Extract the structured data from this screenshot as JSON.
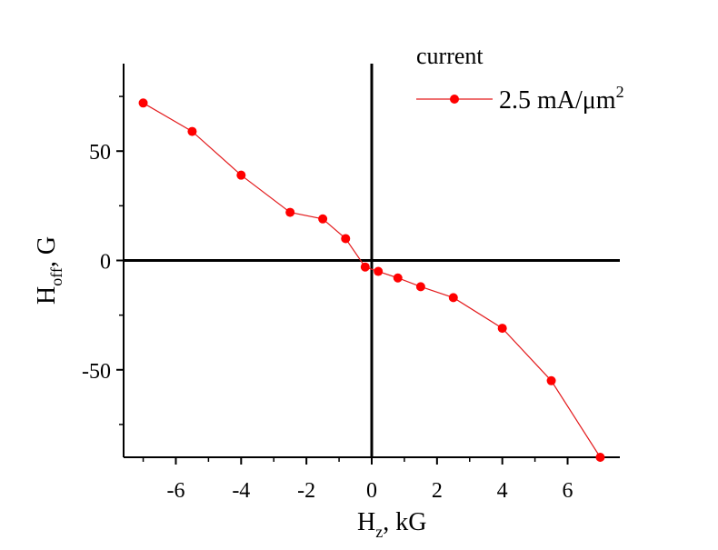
{
  "chart_data": {
    "type": "line",
    "x": [
      -7,
      -5.5,
      -4,
      -2.5,
      -1.5,
      -0.8,
      -0.2,
      0.2,
      0.8,
      1.5,
      2.5,
      4,
      5.5,
      7
    ],
    "series": [
      {
        "name": "2.5 mA/μm",
        "name_superscript": "2",
        "values": [
          72,
          59,
          39,
          22,
          19,
          10,
          -3,
          -5,
          -8,
          -12,
          -17,
          -31,
          -55,
          -90
        ],
        "color": "#e31a1c"
      }
    ],
    "xlabel": {
      "main": "H",
      "sub": "z",
      "rest": ", kG"
    },
    "ylabel": {
      "main": "H",
      "sub": "off",
      "rest": ", G"
    },
    "xlim": [
      -7.6,
      7.6
    ],
    "ylim": [
      -90,
      90
    ],
    "xticks": [
      -6,
      -4,
      -2,
      0,
      2,
      4,
      6
    ],
    "xtick_labels": [
      "-6",
      "-4",
      "-2",
      "0",
      "2",
      "4",
      "6"
    ],
    "yticks": [
      50,
      0,
      -50
    ],
    "ytick_labels": [
      "50",
      "0",
      "-50"
    ],
    "legend_title": "current",
    "legend_position": "top-right",
    "grid": false,
    "zero_lines": true
  }
}
